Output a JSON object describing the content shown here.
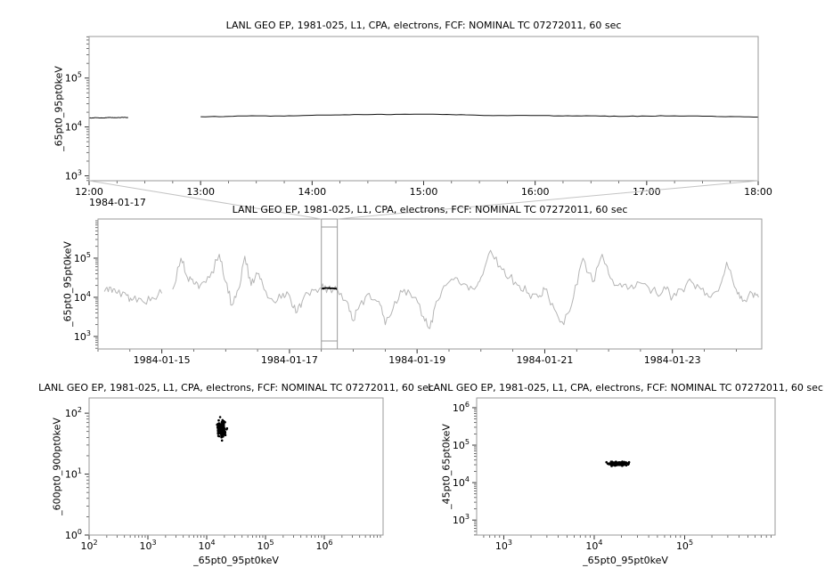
{
  "app": {
    "background": "#ffffff"
  },
  "chart_data": [
    {
      "id": "top-timeseries",
      "type": "line",
      "title": "LANL GEO EP, 1981-025, L1, CPA, electrons, FCF: NOMINAL TC 07272011, 60 sec",
      "ylabel": "_65pt0_95pt0keV",
      "x_context_label": "1984-01-17",
      "x_axis": {
        "kind": "time",
        "min": 12,
        "max": 18,
        "major_values": [
          12,
          13,
          14,
          15,
          16,
          17,
          18
        ],
        "tick_labels": [
          "12:00",
          "13:00",
          "14:00",
          "15:00",
          "16:00",
          "17:00",
          "18:00"
        ],
        "minor_step": 0.25
      },
      "y_axis": {
        "kind": "log",
        "min_exp": 2.9,
        "max_exp": 5.85,
        "major_exps": [
          3,
          4,
          5
        ]
      },
      "series": [
        {
          "name": "_65pt0_95pt0keV",
          "color": "#111111",
          "width": 1,
          "seed": 3,
          "jitter_log": 0.005,
          "subdiv": 6,
          "segments": [
            {
              "x": [
                12.0,
                12.06,
                12.12,
                12.18,
                12.24,
                12.3,
                12.35
              ],
              "y": [
                15200,
                15500,
                15300,
                15600,
                15400,
                15700,
                15500
              ]
            },
            {
              "x": [
                13.0,
                13.25,
                13.5,
                13.75,
                14.0,
                14.25,
                14.5,
                14.75,
                15.0,
                15.25,
                15.5,
                15.75,
                16.0,
                16.25,
                16.5,
                16.75,
                17.0,
                17.25,
                17.5,
                17.75,
                18.0
              ],
              "y": [
                16200,
                16500,
                16900,
                16700,
                17300,
                17600,
                17900,
                18100,
                18300,
                17900,
                17300,
                17000,
                17100,
                16800,
                16900,
                16500,
                16700,
                16900,
                16600,
                16300,
                15900
              ]
            }
          ]
        }
      ]
    },
    {
      "id": "context-timeseries",
      "type": "line",
      "title": "LANL GEO EP, 1981-025, L1, CPA, electrons, FCF: NOMINAL TC 07272011, 60 sec",
      "ylabel": "_65pt0_95pt0keV",
      "x_axis": {
        "kind": "time",
        "min": 14.0,
        "max": 24.4,
        "major_values": [
          15,
          17,
          19,
          21,
          23
        ],
        "tick_labels": [
          "1984-01-15",
          "1984-01-17",
          "1984-01-19",
          "1984-01-21",
          "1984-01-23"
        ],
        "minor_step": 0.5
      },
      "y_axis": {
        "kind": "log",
        "min_exp": 2.68,
        "max_exp": 6.0,
        "major_exps": [
          3,
          4,
          5
        ]
      },
      "selection": {
        "x_start": 17.5,
        "x_end": 17.75
      },
      "series": [
        {
          "name": "context-gray",
          "color": "#b5b5b5",
          "width": 1,
          "seed": 5,
          "jitter_log": 0.12,
          "subdiv": 5,
          "segments": [
            {
              "x": [
                14.1,
                14.2,
                14.3,
                14.45,
                14.55,
                14.7,
                14.85,
                15.0
              ],
              "y": [
                14000,
                18000,
                12600,
                11200,
                8900,
                7900,
                10000,
                12600
              ]
            },
            {
              "x": [
                15.17,
                15.3,
                15.4,
                15.5,
                15.6,
                15.75,
                15.9,
                16.0,
                16.1,
                16.2,
                16.3,
                16.4,
                16.5,
                16.6,
                16.75,
                16.9,
                17.0,
                17.1,
                17.2,
                17.35,
                17.5,
                17.6,
                17.75,
                17.9,
                18.0,
                18.1,
                18.25,
                18.4,
                18.5,
                18.65,
                18.8,
                18.95,
                19.1,
                19.2,
                19.3,
                19.45,
                19.6,
                19.75,
                19.9,
                20.0,
                20.15,
                20.3,
                20.45,
                20.6,
                20.75,
                20.9,
                21.0,
                21.15,
                21.3,
                21.45,
                21.6,
                21.75,
                21.9,
                22.0,
                22.15,
                22.3,
                22.45,
                22.6,
                22.75,
                22.9,
                23.0,
                23.15,
                23.3,
                23.45,
                23.6,
                23.75,
                23.85,
                24.0,
                24.1,
                24.25,
                24.35
              ],
              "y": [
                16000,
                100000,
                32000,
                22000,
                20000,
                32000,
                126000,
                25000,
                6300,
                16000,
                112000,
                20000,
                40000,
                16000,
                7900,
                12600,
                11200,
                4000,
                7900,
                16000,
                17800,
                16600,
                15800,
                7900,
                2500,
                6300,
                12600,
                7900,
                2000,
                7900,
                16000,
                10000,
                3200,
                1600,
                7900,
                20000,
                32000,
                22000,
                16000,
                32000,
                158000,
                63000,
                32000,
                20000,
                12600,
                10000,
                16000,
                5000,
                2000,
                10000,
                100000,
                25000,
                126000,
                40000,
                20000,
                16000,
                25000,
                20000,
                12600,
                16000,
                10000,
                16000,
                25000,
                16000,
                10000,
                20000,
                79000,
                16000,
                7900,
                12600,
                10000
              ]
            }
          ]
        },
        {
          "name": "selected-interval-black",
          "color": "#000000",
          "width": 1.8,
          "seed": 9,
          "jitter_log": 0.01,
          "subdiv": 4,
          "segments": [
            {
              "x": [
                17.5,
                17.55,
                17.6,
                17.65,
                17.7,
                17.75
              ],
              "y": [
                16600,
                17000,
                17200,
                17000,
                16800,
                16300
              ]
            }
          ]
        }
      ]
    },
    {
      "id": "scatter-left",
      "type": "scatter",
      "title": "LANL GEO EP, 1981-025, L1, CPA, electrons, FCF: NOMINAL TC 07272011, 60 sec",
      "xlabel": "_65pt0_95pt0keV",
      "ylabel": "_600pt0_900pt0keV",
      "x_axis": {
        "kind": "log",
        "min_exp": 2.0,
        "max_exp": 7.0,
        "major_exps": [
          2,
          3,
          4,
          5,
          6
        ]
      },
      "y_axis": {
        "kind": "log",
        "min_exp": 0.0,
        "max_exp": 2.25,
        "major_exps": [
          0,
          1,
          2
        ]
      },
      "cluster": {
        "center_x": 18000,
        "center_y": 55,
        "sigma_logx": 0.03,
        "sigma_logy": 0.06,
        "count": 170,
        "seed": 7,
        "color": "#000000",
        "marker_px": 1.3
      }
    },
    {
      "id": "scatter-right",
      "type": "scatter",
      "title": "LANL GEO EP, 1981-025, L1, CPA, electrons, FCF: NOMINAL TC 07272011, 60 sec",
      "xlabel": "_65pt0_95pt0keV",
      "ylabel": "_45pt0_65pt0keV",
      "x_axis": {
        "kind": "log",
        "min_exp": 2.7,
        "max_exp": 6.0,
        "major_exps": [
          3,
          4,
          5
        ]
      },
      "y_axis": {
        "kind": "log",
        "min_exp": 2.6,
        "max_exp": 6.26,
        "major_exps": [
          3,
          4,
          5,
          6
        ]
      },
      "cluster": {
        "center_x": 18000,
        "center_y": 32000,
        "sigma_logx": 0.045,
        "sigma_logy": 0.022,
        "count": 170,
        "seed": 11,
        "color": "#000000",
        "marker_px": 1.3
      }
    }
  ]
}
